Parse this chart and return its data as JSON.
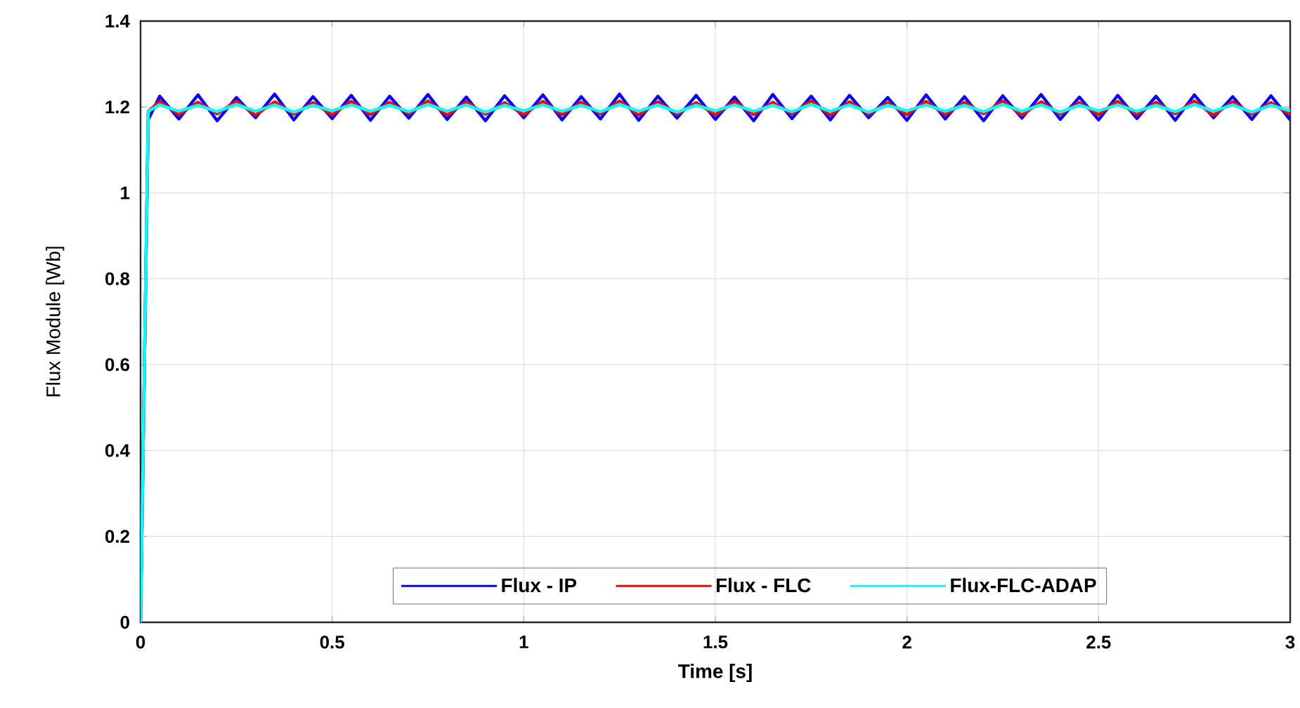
{
  "chart_data": {
    "type": "line",
    "xlabel": "Time [s]",
    "ylabel": "Flux Module  [Wb]",
    "x": [
      0,
      0.02,
      0.05,
      0.1,
      0.15,
      0.2,
      0.25,
      0.3,
      0.35,
      0.4,
      0.45,
      0.5,
      0.55,
      0.6,
      0.65,
      0.7,
      0.75,
      0.8,
      0.85,
      0.9,
      0.95,
      1,
      1.05,
      1.1,
      1.15,
      1.2,
      1.25,
      1.3,
      1.35,
      1.4,
      1.45,
      1.5,
      1.55,
      1.6,
      1.65,
      1.7,
      1.75,
      1.8,
      1.85,
      1.9,
      1.95,
      2,
      2.05,
      2.1,
      2.15,
      2.2,
      2.25,
      2.3,
      2.35,
      2.4,
      2.45,
      2.5,
      2.55,
      2.6,
      2.65,
      2.7,
      2.75,
      2.8,
      2.85,
      2.9,
      2.95,
      3
    ],
    "series": [
      {
        "name": "Flux - IP",
        "color": "#0000ff",
        "values": [
          0,
          1.17,
          1.225,
          1.172,
          1.228,
          1.168,
          1.222,
          1.175,
          1.23,
          1.17,
          1.224,
          1.173,
          1.227,
          1.169,
          1.225,
          1.174,
          1.229,
          1.171,
          1.223,
          1.168,
          1.226,
          1.175,
          1.228,
          1.17,
          1.224,
          1.172,
          1.23,
          1.169,
          1.225,
          1.174,
          1.227,
          1.171,
          1.223,
          1.168,
          1.229,
          1.173,
          1.225,
          1.17,
          1.227,
          1.175,
          1.222,
          1.169,
          1.228,
          1.172,
          1.224,
          1.168,
          1.226,
          1.174,
          1.229,
          1.171,
          1.223,
          1.17,
          1.227,
          1.173,
          1.225,
          1.169,
          1.228,
          1.175,
          1.224,
          1.171,
          1.226,
          1.17
        ]
      },
      {
        "name": "Flux - FLC",
        "color": "#ff0000",
        "values": [
          0,
          1.19,
          1.213,
          1.182,
          1.211,
          1.184,
          1.214,
          1.181,
          1.212,
          1.183,
          1.21,
          1.182,
          1.213,
          1.182,
          1.211,
          1.184,
          1.214,
          1.181,
          1.212,
          1.183,
          1.21,
          1.182,
          1.213,
          1.182,
          1.211,
          1.184,
          1.214,
          1.181,
          1.212,
          1.183,
          1.21,
          1.182,
          1.213,
          1.182,
          1.211,
          1.184,
          1.214,
          1.181,
          1.212,
          1.183,
          1.21,
          1.182,
          1.213,
          1.182,
          1.211,
          1.184,
          1.214,
          1.181,
          1.212,
          1.183,
          1.21,
          1.182,
          1.213,
          1.182,
          1.211,
          1.184,
          1.214,
          1.181,
          1.212,
          1.183,
          1.21,
          1.182
        ]
      },
      {
        "name": "Flux-FLC-ADAP",
        "color": "#00ffff",
        "values": [
          0,
          1.19,
          1.205,
          1.19,
          1.204,
          1.189,
          1.206,
          1.19,
          1.205,
          1.188,
          1.204,
          1.191,
          1.205,
          1.19,
          1.204,
          1.189,
          1.206,
          1.19,
          1.205,
          1.188,
          1.204,
          1.191,
          1.205,
          1.19,
          1.204,
          1.189,
          1.206,
          1.19,
          1.205,
          1.188,
          1.204,
          1.191,
          1.205,
          1.19,
          1.204,
          1.189,
          1.206,
          1.19,
          1.205,
          1.188,
          1.204,
          1.191,
          1.205,
          1.19,
          1.204,
          1.189,
          1.206,
          1.19,
          1.205,
          1.188,
          1.204,
          1.191,
          1.205,
          1.19,
          1.204,
          1.189,
          1.206,
          1.19,
          1.205,
          1.188,
          1.204,
          1.191
        ]
      }
    ],
    "xlim": [
      0,
      3
    ],
    "ylim": [
      0,
      1.4
    ],
    "xticks": [
      0,
      0.5,
      1,
      1.5,
      2,
      2.5,
      3
    ],
    "yticks": [
      0,
      0.2,
      0.4,
      0.6,
      0.8,
      1,
      1.2,
      1.4
    ],
    "grid": true,
    "legend": "bottom",
    "marker": "none",
    "line_style": "solid"
  }
}
